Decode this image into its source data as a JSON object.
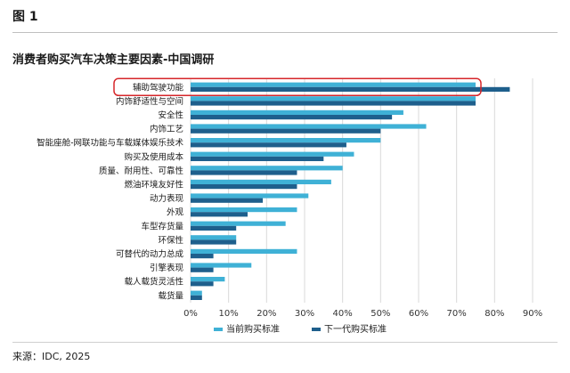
{
  "figure": {
    "label": "图 1",
    "source": "来源：IDC, 2025"
  },
  "colors": {
    "current": "#3fb1d6",
    "next": "#1e5f8c",
    "highlight": "#d6262a",
    "grid": "#d9d9d9"
  },
  "chart_data": {
    "type": "bar",
    "orientation": "horizontal",
    "title": "消费者购买汽车决策主要因素-中国调研",
    "xlabel": "",
    "ylabel": "",
    "xlim": [
      0,
      90
    ],
    "x_ticks": [
      "0%",
      "10%",
      "20%",
      "30%",
      "40%",
      "50%",
      "60%",
      "70%",
      "80%",
      "90%"
    ],
    "grid": true,
    "legend_position": "bottom",
    "highlighted_category": "辅助驾驶功能",
    "categories": [
      "辅助驾驶功能",
      "内饰舒适性与空间",
      "安全性",
      "内饰工艺",
      "智能座舱-网联功能与车载媒体娱乐技术",
      "购买及使用成本",
      "质量、耐用性、可靠性",
      "燃油环境友好性",
      "动力表现",
      "外观",
      "车型存货量",
      "环保性",
      "可替代的动力总成",
      "引擎表现",
      "载人载货灵活性",
      "载货量"
    ],
    "series": [
      {
        "name": "当前购买标准",
        "values": [
          75,
          75,
          56,
          62,
          50,
          43,
          40,
          37,
          31,
          28,
          25,
          12,
          28,
          16,
          9,
          3
        ]
      },
      {
        "name": "下一代购买标准",
        "values": [
          84,
          75,
          53,
          50,
          41,
          35,
          28,
          28,
          19,
          15,
          12,
          12,
          6,
          6,
          6,
          3
        ]
      }
    ]
  }
}
